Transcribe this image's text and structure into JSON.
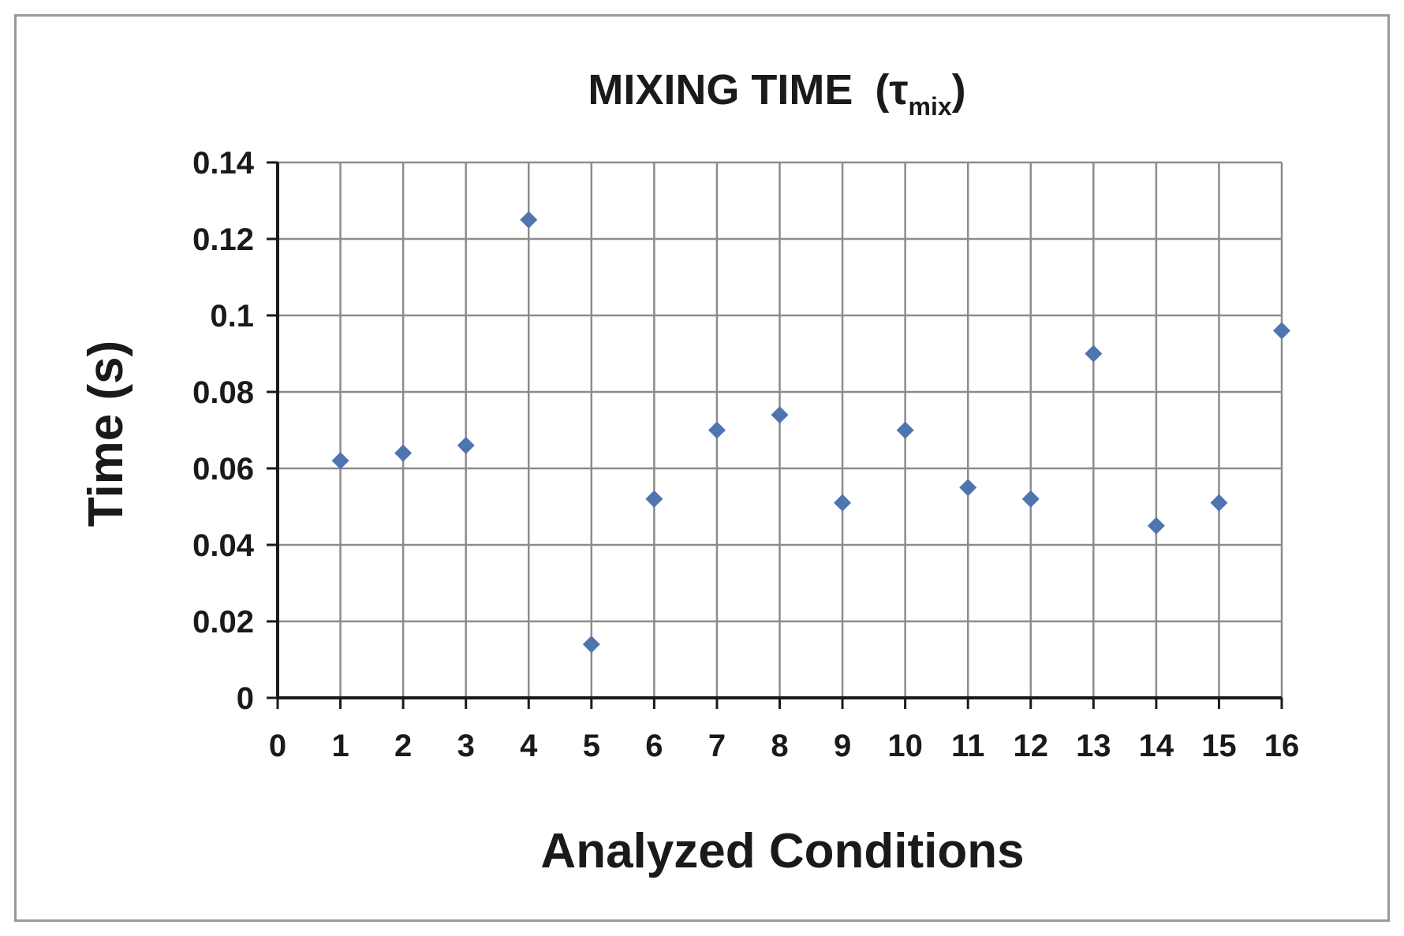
{
  "chart_data": {
    "type": "scatter",
    "title": "MIXING TIME",
    "title_symbol": "τ",
    "title_symbol_sub": "mix",
    "xlabel": "Analyzed Conditions",
    "ylabel": "Time (s)",
    "xlim": [
      0,
      16
    ],
    "ylim": [
      0,
      0.14
    ],
    "x_ticks": [
      "0",
      "1",
      "2",
      "3",
      "4",
      "5",
      "6",
      "7",
      "8",
      "9",
      "10",
      "11",
      "12",
      "13",
      "14",
      "15",
      "16"
    ],
    "y_ticks": [
      "0",
      "0.02",
      "0.04",
      "0.06",
      "0.08",
      "0.1",
      "0.12",
      "0.14"
    ],
    "grid": true,
    "legend": "none",
    "marker": "diamond",
    "marker_color": "#4f75b0",
    "series": [
      {
        "x": [
          1,
          2,
          3,
          4,
          5,
          6,
          7,
          8,
          9,
          10,
          11,
          12,
          13,
          14,
          15,
          16
        ],
        "values": [
          0.062,
          0.064,
          0.066,
          0.125,
          0.014,
          0.052,
          0.07,
          0.074,
          0.051,
          0.07,
          0.055,
          0.052,
          0.09,
          0.045,
          0.051,
          0.096
        ]
      }
    ]
  }
}
